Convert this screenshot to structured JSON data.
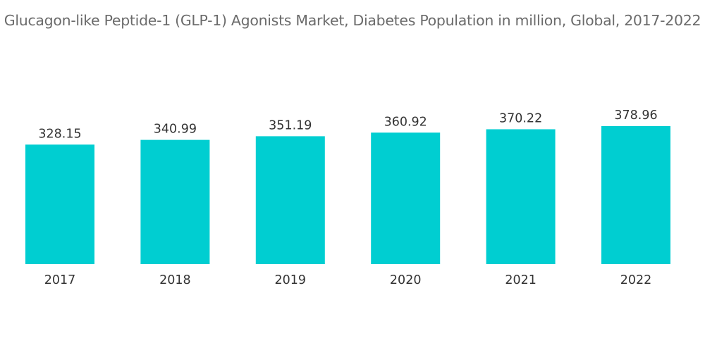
{
  "chart_data": {
    "type": "bar",
    "title": "Glucagon-like Peptide-1 (GLP-1) Agonists Market, Diabetes Population in million, Global, 2017-2022",
    "categories": [
      "2017",
      "2018",
      "2019",
      "2020",
      "2021",
      "2022"
    ],
    "values": [
      328.15,
      340.99,
      351.19,
      360.92,
      370.22,
      378.96
    ],
    "data_labels": [
      "328.15",
      "340.99",
      "351.19",
      "360.92",
      "370.22",
      "378.96"
    ],
    "xlabel": "",
    "ylabel": "",
    "ylim": [
      0,
      378.96
    ],
    "grid": false,
    "legend": "none",
    "bar_color": "#00CED1"
  }
}
